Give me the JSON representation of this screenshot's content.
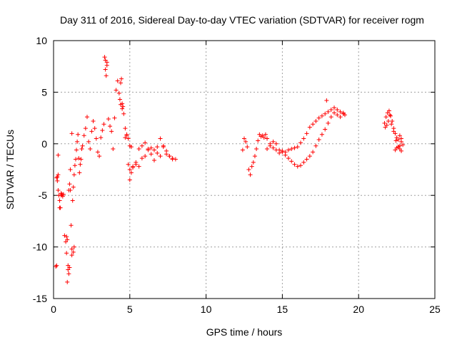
{
  "chart_data": {
    "type": "scatter",
    "title": "Day 311 of 2016, Sidereal Day-to-day VTEC variation (SDTVAR) for receiver rogm",
    "xlabel": "GPS time / hours",
    "ylabel": "SDTVAR / TECUs",
    "xlim": [
      0,
      25
    ],
    "ylim": [
      -15,
      10
    ],
    "xticks": [
      0,
      5,
      10,
      15,
      20,
      25
    ],
    "yticks": [
      -15,
      -10,
      -5,
      0,
      5,
      10
    ],
    "xtick_labels": [
      "0",
      "5",
      "10",
      "15",
      "20",
      "25"
    ],
    "ytick_labels": [
      "-15",
      "-10",
      "-5",
      "0",
      "5",
      "10"
    ],
    "grid": true,
    "marker": "+",
    "color": "#ff0000",
    "series": [
      {
        "name": "SDTVAR",
        "x": [
          0.15,
          0.2,
          0.25,
          0.3,
          0.35,
          0.4,
          0.45,
          0.5,
          0.55,
          0.6,
          0.65,
          0.72,
          0.8,
          0.85,
          0.9,
          0.95,
          1.0,
          1.05,
          1.1,
          1.15,
          1.2,
          1.25,
          1.3,
          1.35,
          1.4,
          1.45,
          1.5,
          1.55,
          1.6,
          1.65,
          1.7,
          1.75,
          1.8,
          1.85,
          1.9,
          2.0,
          2.1,
          2.2,
          2.3,
          2.4,
          2.5,
          2.6,
          2.7,
          2.8,
          2.9,
          3.0,
          3.1,
          3.2,
          3.3,
          3.4,
          3.5,
          3.6,
          3.7,
          3.8,
          3.9,
          4.0,
          4.1,
          4.2,
          4.3,
          4.4,
          4.5,
          4.6,
          4.7,
          4.8,
          4.9,
          5.0,
          5.2,
          5.4,
          5.6,
          5.8,
          6.0,
          6.2,
          6.4,
          6.6,
          6.8,
          7.0,
          7.2,
          7.4,
          7.6,
          7.8,
          8.0,
          0.2,
          0.25,
          0.3,
          0.85,
          0.9,
          0.95,
          1.0,
          1.05,
          1.2,
          1.3,
          1.35,
          3.35,
          3.4,
          3.45,
          3.5,
          4.35,
          4.4,
          4.45,
          4.5,
          4.55,
          5.0,
          5.1,
          5.2,
          5.4,
          5.6,
          5.8,
          6.0,
          6.2,
          6.4,
          6.6,
          6.8,
          7.0,
          7.2,
          7.4,
          7.6,
          7.8,
          0.3,
          0.4,
          0.5,
          1.1,
          1.2,
          4.7,
          4.8,
          4.9,
          5.0,
          5.1,
          12.4,
          12.5,
          12.6,
          12.7,
          12.8,
          12.9,
          13.0,
          13.1,
          13.2,
          13.3,
          13.4,
          13.5,
          13.6,
          13.7,
          13.8,
          13.9,
          14.0,
          14.2,
          14.4,
          14.6,
          14.8,
          15.0,
          15.2,
          15.4,
          15.6,
          15.8,
          16.0,
          16.2,
          16.4,
          16.6,
          16.8,
          17.0,
          17.2,
          17.4,
          17.6,
          17.8,
          18.0,
          18.2,
          18.4,
          18.6,
          18.8,
          19.0,
          19.1,
          14.0,
          14.2,
          14.4,
          14.6,
          14.8,
          15.0,
          15.2,
          15.4,
          15.6,
          15.8,
          16.0,
          16.2,
          16.4,
          16.6,
          16.8,
          17.0,
          17.2,
          17.4,
          17.6,
          17.8,
          18.0,
          18.2,
          18.4,
          18.6,
          18.8,
          19.0,
          17.9,
          21.7,
          21.8,
          21.9,
          22.0,
          22.1,
          22.2,
          22.3,
          22.4,
          22.5,
          22.6,
          22.7,
          22.8,
          22.9,
          21.75,
          21.85,
          21.95,
          22.05,
          22.15,
          22.3,
          22.45,
          22.6,
          22.7,
          22.8,
          22.4,
          22.5,
          22.6,
          22.7,
          22.8
        ],
        "y": [
          -11.9,
          -11.8,
          -3.2,
          -4.5,
          -5.0,
          -5.5,
          -6.2,
          -4.8,
          -4.9,
          -5.1,
          -4.9,
          -8.9,
          -9.5,
          -10.6,
          -13.4,
          -12.2,
          -4.5,
          -3.9,
          -2.5,
          -7.9,
          -10.2,
          -5.5,
          -4.2,
          -3.0,
          -2.1,
          -1.5,
          -0.6,
          0.2,
          0.9,
          -1.4,
          -2.8,
          -2.0,
          -1.5,
          -0.5,
          -0.2,
          0.8,
          1.5,
          2.6,
          0.2,
          -0.5,
          1.2,
          2.2,
          1.5,
          0.5,
          -0.8,
          -1.2,
          0.6,
          1.3,
          1.9,
          8.1,
          7.6,
          2.4,
          1.7,
          1.2,
          -0.5,
          2.5,
          5.2,
          6.1,
          4.9,
          3.8,
          3.4,
          2.9,
          1.5,
          0.8,
          -2.0,
          -2.5,
          -2.3,
          -2.0,
          -0.5,
          -0.2,
          0.1,
          -0.5,
          -1.0,
          -0.6,
          -0.3,
          0.5,
          -0.2,
          -1.0,
          -1.2,
          -1.4,
          -1.5,
          -3.3,
          -3.6,
          -3.0,
          -9.0,
          -9.3,
          -11.8,
          -12.6,
          -12.0,
          -10.8,
          -10.5,
          -10.0,
          8.4,
          7.2,
          6.6,
          7.9,
          4.3,
          5.9,
          6.3,
          3.9,
          3.6,
          -3.5,
          -2.8,
          -2.2,
          -1.8,
          -2.2,
          -1.4,
          -1.2,
          -0.6,
          -0.4,
          -1.6,
          -0.9,
          -1.2,
          -0.3,
          -0.7,
          -1.2,
          -1.5,
          -1.1,
          -6.2,
          -5.0,
          -4.5,
          1.0,
          0.6,
          0.9,
          0.5,
          -0.2,
          -0.3,
          -0.6,
          0.5,
          0.2,
          -0.3,
          -2.5,
          -3.0,
          -2.2,
          -1.8,
          -1.2,
          -0.5,
          0.3,
          0.9,
          0.7,
          0.8,
          0.6,
          0.9,
          0.5,
          0.0,
          -0.4,
          -0.6,
          -0.9,
          -0.7,
          -0.8,
          -0.6,
          -0.5,
          -0.4,
          -0.3,
          0.1,
          0.5,
          1.0,
          1.6,
          1.9,
          2.2,
          2.5,
          2.7,
          2.9,
          3.1,
          3.3,
          3.5,
          2.8,
          2.6,
          2.9,
          2.8,
          -0.5,
          -0.2,
          0.2,
          0.0,
          -0.6,
          -0.8,
          -1.1,
          -1.4,
          -1.7,
          -2.0,
          -2.2,
          -2.1,
          -1.8,
          -1.5,
          -1.2,
          -0.8,
          -0.2,
          0.4,
          0.9,
          1.4,
          2.0,
          2.6,
          3.0,
          3.3,
          3.1,
          3.0,
          4.2,
          2.0,
          2.6,
          3.0,
          3.2,
          2.7,
          2.2,
          1.5,
          1.0,
          0.6,
          0.4,
          0.8,
          0.5,
          -0.1,
          1.6,
          1.8,
          2.2,
          2.8,
          1.9,
          1.2,
          0.3,
          -0.3,
          -0.5,
          -0.7,
          -0.6,
          -0.4,
          -0.3,
          -0.2,
          0.2
        ]
      }
    ]
  }
}
